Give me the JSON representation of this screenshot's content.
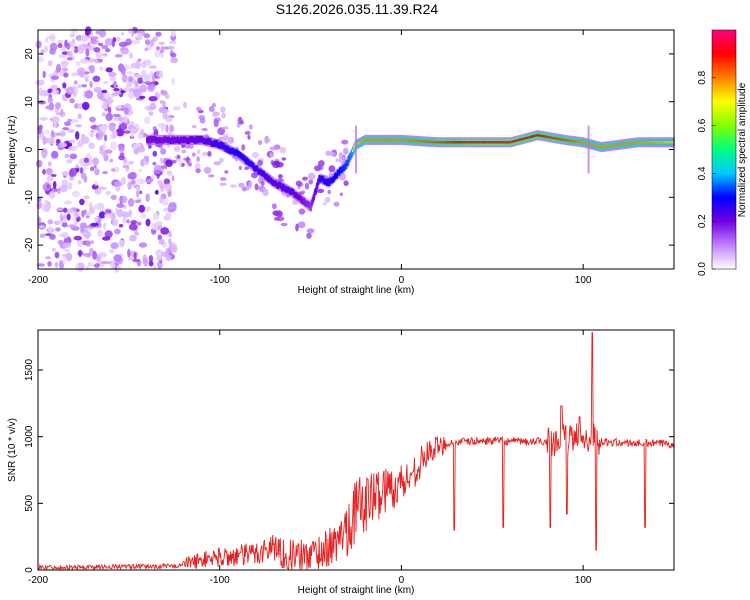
{
  "title": "S126.2026.035.11.39.R24",
  "chart_data": [
    {
      "type": "heatmap",
      "panel": "spectrogram",
      "xlabel": "Height of straight line (km)",
      "ylabel": "Frequency (Hz)",
      "xlim": [
        -200,
        150
      ],
      "ylim": [
        -25,
        25
      ],
      "xticks": [
        -200,
        -100,
        0,
        100
      ],
      "yticks": [
        -20,
        -10,
        0,
        10,
        20
      ],
      "colorbar": {
        "label": "Normalized spectral amplitude",
        "range": [
          0,
          1
        ],
        "ticks": [
          "0.0",
          "0.2",
          "0.4",
          "0.6",
          "0.8"
        ],
        "colors": [
          "#ffffff",
          "#c080ff",
          "#7000e0",
          "#0000ff",
          "#00c8ff",
          "#00ff80",
          "#80ff00",
          "#ffff00",
          "#ff8000",
          "#ff0000",
          "#ff0080"
        ]
      },
      "signal_track": {
        "description_points_x": [
          -130,
          -110,
          -100,
          -90,
          -80,
          -70,
          -60,
          -50,
          -45,
          -40,
          -35,
          -30,
          -25,
          -20,
          0,
          20,
          40,
          60,
          75,
          90,
          100,
          110,
          130,
          150
        ],
        "frequency_hz": [
          2,
          2,
          1,
          -1,
          -4,
          -7,
          -9,
          -12,
          -6,
          -7,
          -5,
          -3,
          1,
          2,
          2,
          1.5,
          1.5,
          1.5,
          3,
          2,
          1.5,
          0.5,
          1.5,
          1.5
        ],
        "amplitude": [
          0.35,
          0.4,
          0.45,
          0.5,
          0.45,
          0.4,
          0.4,
          0.3,
          0.45,
          0.5,
          0.55,
          0.6,
          0.75,
          0.8,
          0.8,
          0.85,
          0.95,
          0.95,
          0.9,
          0.85,
          0.8,
          0.8,
          0.8,
          0.75
        ]
      }
    },
    {
      "type": "line",
      "panel": "snr",
      "xlabel": "Height of straight line (km)",
      "ylabel": "SNR (10 * v/v)",
      "xlim": [
        -200,
        150
      ],
      "ylim": [
        0,
        1800
      ],
      "xticks": [
        -200,
        -100,
        0,
        100
      ],
      "yticks": [
        0,
        500,
        1000,
        1500
      ],
      "color": "#e82020",
      "series": [
        {
          "name": "SNR",
          "x": [
            -200,
            -180,
            -160,
            -140,
            -125,
            -115,
            -105,
            -95,
            -85,
            -75,
            -70,
            -65,
            -55,
            -45,
            -35,
            -30,
            -25,
            -20,
            -15,
            -10,
            -5,
            0,
            5,
            10,
            15,
            20,
            25,
            30,
            40,
            50,
            60,
            70,
            80,
            90,
            95,
            100,
            105,
            107,
            110,
            120,
            130,
            140,
            150
          ],
          "y": [
            20,
            20,
            25,
            25,
            30,
            60,
            90,
            100,
            110,
            150,
            180,
            120,
            100,
            140,
            200,
            350,
            450,
            500,
            550,
            600,
            620,
            650,
            700,
            800,
            880,
            920,
            950,
            960,
            965,
            970,
            965,
            960,
            970,
            980,
            990,
            1000,
            980,
            1000,
            960,
            955,
            950,
            950,
            945
          ]
        }
      ],
      "dropouts": [
        {
          "x": 29,
          "y": 300
        },
        {
          "x": 56,
          "y": 320
        },
        {
          "x": 82,
          "y": 320
        },
        {
          "x": 91,
          "y": 420
        },
        {
          "x": 107,
          "y": 150
        },
        {
          "x": 134,
          "y": 320
        }
      ],
      "spikes": [
        {
          "x": 88,
          "y": 1230
        },
        {
          "x": 98,
          "y": 1150
        },
        {
          "x": 105,
          "y": 1780
        }
      ]
    }
  ]
}
